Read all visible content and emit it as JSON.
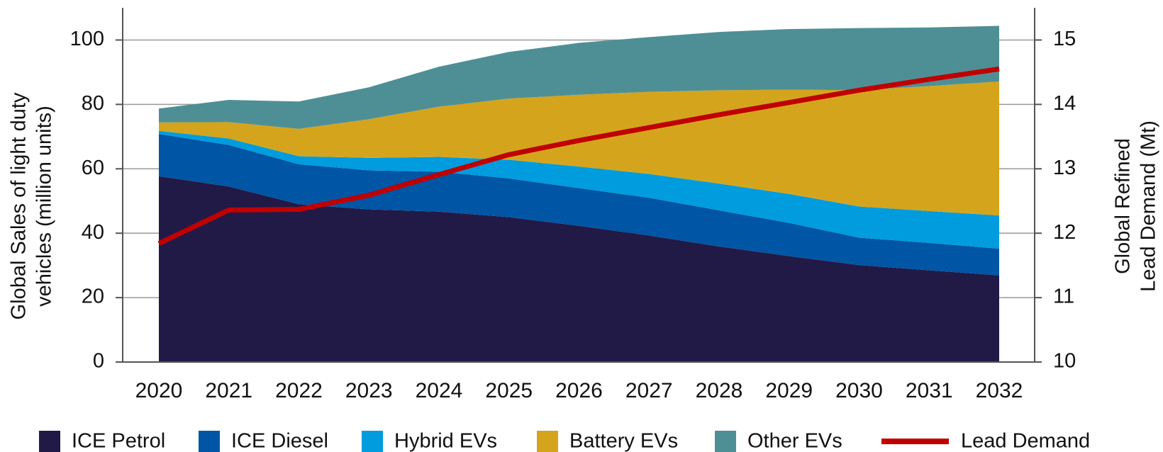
{
  "chart_data": {
    "type": "stacked_area_line",
    "categories": [
      "2020",
      "2021",
      "2022",
      "2023",
      "2024",
      "2025",
      "2026",
      "2027",
      "2028",
      "2029",
      "2030",
      "2031",
      "2032"
    ],
    "ylabel": [
      "Global Sales of light duty",
      "vehicles  (million units)"
    ],
    "y2label": [
      "Global Refined",
      "Lead Demand (Mt)"
    ],
    "ylim": [
      0,
      110
    ],
    "yticks": [
      0,
      20,
      40,
      60,
      80,
      100
    ],
    "y2lim": [
      10,
      15.5
    ],
    "y2ticks": [
      10,
      11,
      12,
      13,
      14,
      15
    ],
    "grid": true,
    "legend": "bottom",
    "series": [
      {
        "name": "ICE Petrol",
        "color": "#211a46",
        "values": [
          57.7,
          54.5,
          49,
          47.4,
          46.7,
          45,
          42.3,
          39.3,
          35.9,
          32.9,
          30.1,
          28.5,
          26.9
        ]
      },
      {
        "name": "ICE Diesel",
        "color": "#0055a4",
        "values": [
          13.1,
          12.9,
          12.4,
          12.1,
          12.4,
          12,
          11.7,
          11.7,
          11.2,
          10.3,
          8.5,
          8.5,
          8.3
        ]
      },
      {
        "name": "Hybrid EVs",
        "color": "#009cde",
        "values": [
          1,
          2,
          2.5,
          3.9,
          4.6,
          5.8,
          6.7,
          7.4,
          8.3,
          9,
          9.7,
          9.9,
          10.3
        ]
      },
      {
        "name": "Battery EVs",
        "color": "#d4a51c",
        "values": [
          2.6,
          5.1,
          8.5,
          12,
          15.6,
          19,
          22.3,
          25.5,
          29,
          32.4,
          36.1,
          38.8,
          41.6
        ]
      },
      {
        "name": "Other EVs",
        "color": "#4e8f96",
        "values": [
          4.3,
          6.9,
          8.5,
          9.9,
          12.4,
          14.5,
          16.1,
          17,
          18.1,
          18.8,
          19.3,
          18.2,
          17.3
        ]
      },
      {
        "name": "Lead Demand",
        "color": "#c00000",
        "axis": "y2",
        "values": [
          11.84,
          12.36,
          12.37,
          12.59,
          12.91,
          13.22,
          13.44,
          13.64,
          13.84,
          14.03,
          14.22,
          14.39,
          14.55
        ]
      }
    ]
  }
}
